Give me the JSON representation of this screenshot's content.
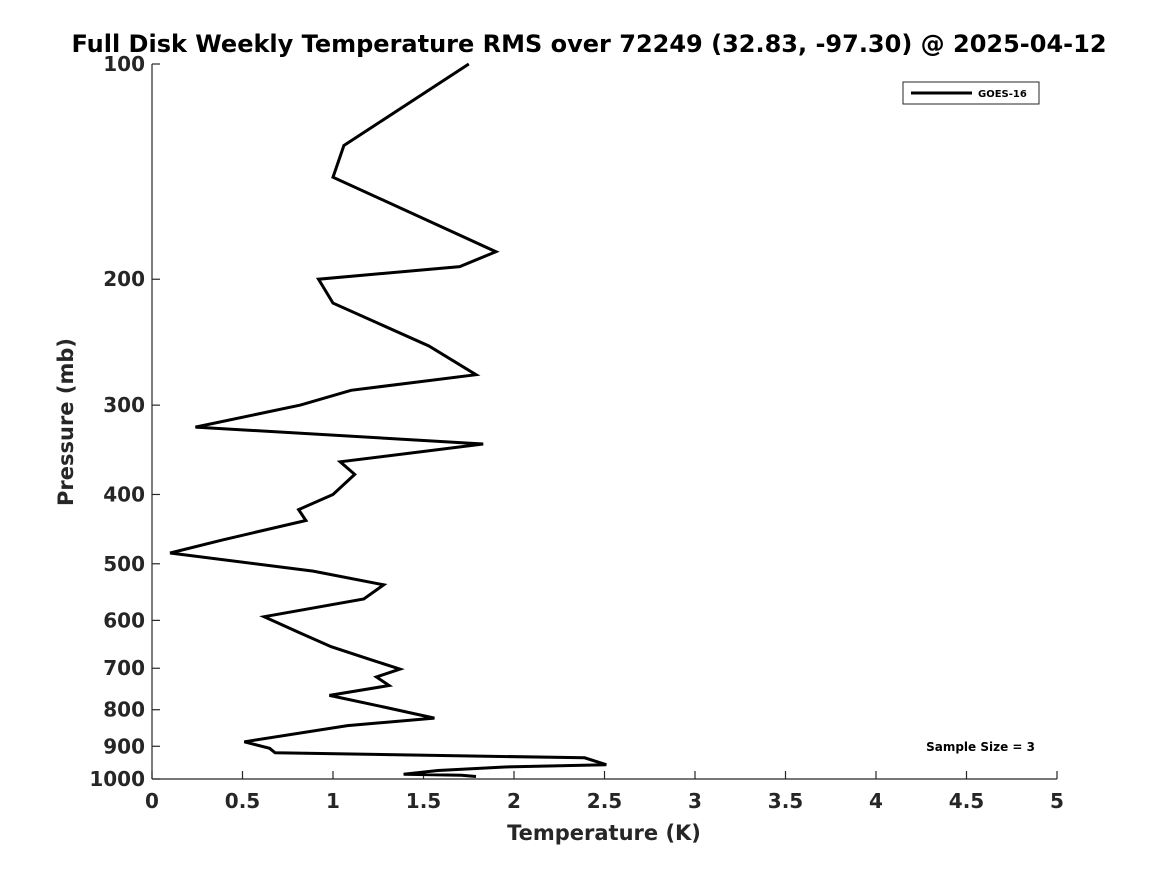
{
  "chart_data": {
    "type": "line",
    "title": "Full Disk Weekly Temperature RMS over 72249 (32.83, -97.30) @ 2025-04-12",
    "xlabel": "Temperature (K)",
    "ylabel": "Pressure (mb)",
    "xlim": [
      0,
      5
    ],
    "ylim": [
      1000,
      100
    ],
    "y_scale": "log",
    "y_reversed": true,
    "grid": false,
    "legend_position": "top-right",
    "x_ticks": [
      {
        "value": 0,
        "label": "0"
      },
      {
        "value": 0.5,
        "label": "0.5"
      },
      {
        "value": 1,
        "label": "1"
      },
      {
        "value": 1.5,
        "label": "1.5"
      },
      {
        "value": 2,
        "label": "2"
      },
      {
        "value": 2.5,
        "label": "2.5"
      },
      {
        "value": 3,
        "label": "3"
      },
      {
        "value": 3.5,
        "label": "3.5"
      },
      {
        "value": 4,
        "label": "4"
      },
      {
        "value": 4.5,
        "label": "4.5"
      },
      {
        "value": 5,
        "label": "5"
      }
    ],
    "y_ticks": [
      {
        "value": 100,
        "label": "100"
      },
      {
        "value": 200,
        "label": "200"
      },
      {
        "value": 300,
        "label": "300"
      },
      {
        "value": 400,
        "label": "400"
      },
      {
        "value": 500,
        "label": "500"
      },
      {
        "value": 600,
        "label": "600"
      },
      {
        "value": 700,
        "label": "700"
      },
      {
        "value": 800,
        "label": "800"
      },
      {
        "value": 900,
        "label": "900"
      },
      {
        "value": 1000,
        "label": "1000"
      }
    ],
    "series": [
      {
        "name": "GOES-16",
        "color": "#000000",
        "x": [
          1.75,
          1.06,
          1.0,
          1.9,
          1.7,
          0.92,
          1.0,
          1.53,
          1.79,
          1.1,
          0.82,
          0.24,
          1.83,
          1.04,
          1.12,
          1.0,
          0.81,
          0.85,
          0.39,
          0.1,
          0.89,
          1.28,
          1.17,
          0.62,
          0.82,
          0.99,
          1.2,
          1.37,
          1.24,
          1.31,
          0.98,
          1.29,
          1.56,
          1.08,
          0.51,
          0.65,
          0.68,
          2.39,
          2.51,
          1.95,
          1.58,
          1.39,
          1.71,
          1.79
        ],
        "y": [
          100,
          130,
          144,
          183,
          192,
          200,
          216,
          248,
          272,
          286,
          300,
          322,
          340,
          360,
          375,
          400,
          420,
          435,
          463,
          483,
          512,
          535,
          560,
          593,
          625,
          653,
          680,
          702,
          720,
          740,
          764,
          794,
          822,
          842,
          887,
          906,
          919,
          934,
          955,
          962,
          973,
          985,
          988,
          992
        ]
      }
    ],
    "annotations": [
      {
        "text": "Sample Size = 3",
        "position": "bottom-right"
      }
    ]
  }
}
